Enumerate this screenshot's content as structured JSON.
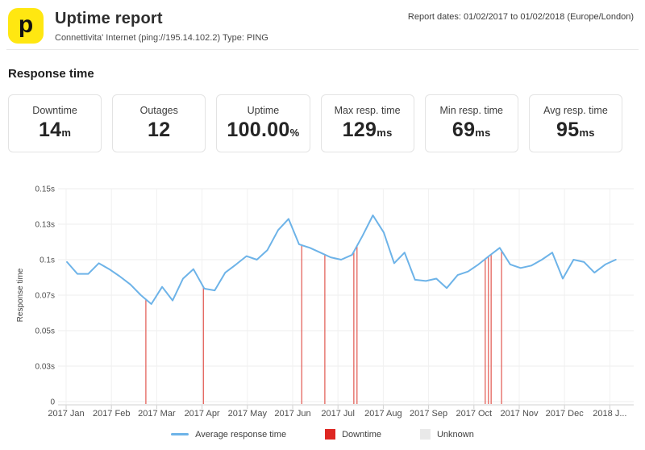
{
  "header": {
    "logo_letter": "p",
    "title": "Uptime report",
    "subtitle": "Connettivita' Internet (ping://195.14.102.2) Type: PING",
    "report_dates": "Report dates: 01/02/2017 to 01/02/2018 (Europe/London)"
  },
  "section": {
    "title": "Response time"
  },
  "stats": [
    {
      "label": "Downtime",
      "value": "14",
      "unit": "m"
    },
    {
      "label": "Outages",
      "value": "12",
      "unit": ""
    },
    {
      "label": "Uptime",
      "value": "100.00",
      "unit": "%"
    },
    {
      "label": "Max resp. time",
      "value": "129",
      "unit": "ms"
    },
    {
      "label": "Min resp. time",
      "value": "69",
      "unit": "ms"
    },
    {
      "label": "Avg resp. time",
      "value": "95",
      "unit": "ms"
    }
  ],
  "colors": {
    "brand_yellow": "#FFE711",
    "line_blue": "#6DB3E8",
    "downtime_red": "#DE2722",
    "downtime_line_red": "#E2574F",
    "unknown_gray": "#E9E9E9",
    "gridline": "#ECECEC",
    "vertical_gridline": "#F1F1F1",
    "axis_line": "#D9D9D9",
    "axis_text": "#4D4D4D"
  },
  "chart_data": {
    "type": "line",
    "title": "Response time",
    "ylabel": "Response time",
    "x_tick_labels": [
      "2017 Jan",
      "2017 Feb",
      "2017 Mar",
      "2017 Apr",
      "2017 May",
      "2017 Jun",
      "2017 Jul",
      "2017 Aug",
      "2017 Sep",
      "2017 Oct",
      "2017 Nov",
      "2017 Dec",
      "2018 J..."
    ],
    "y_ticks": {
      "values": [
        0,
        0.03,
        0.05,
        0.07,
        0.1,
        0.13,
        0.15
      ],
      "labels": [
        "0",
        "0.03s",
        "0.05s",
        "0.07s",
        "0.1s",
        "0.13s",
        "0.15s"
      ]
    },
    "series": [
      {
        "name": "Average response time",
        "unit": "seconds",
        "x_months": [
          0.02,
          0.25,
          0.49,
          0.72,
          0.95,
          1.18,
          1.42,
          1.65,
          1.88,
          2.12,
          2.35,
          2.58,
          2.81,
          3.05,
          3.28,
          3.51,
          3.75,
          3.98,
          4.21,
          4.44,
          4.68,
          4.91,
          5.14,
          5.38,
          5.61,
          5.84,
          6.07,
          6.31,
          6.54,
          6.77,
          7.01,
          7.24,
          7.47,
          7.7,
          7.94,
          8.17,
          8.4,
          8.64,
          8.87,
          9.1,
          9.33,
          9.57,
          9.8,
          10.03,
          10.27,
          10.5,
          10.73,
          10.96,
          11.2,
          11.43,
          11.66,
          11.9,
          12.13
        ],
        "values": [
          0.098,
          0.088,
          0.088,
          0.097,
          0.092,
          0.086,
          0.079,
          0.07,
          0.065,
          0.077,
          0.067,
          0.084,
          0.092,
          0.0755,
          0.074,
          0.089,
          0.096,
          0.103,
          0.1,
          0.108,
          0.125,
          0.133,
          0.113,
          0.11,
          0.106,
          0.102,
          0.1,
          0.104,
          0.12,
          0.135,
          0.123,
          0.097,
          0.106,
          0.083,
          0.082,
          0.084,
          0.076,
          0.087,
          0.09,
          0.096,
          0.103,
          0.11,
          0.096,
          0.093,
          0.095,
          0.1,
          0.106,
          0.084,
          0.1,
          0.098,
          0.089,
          0.096,
          0.1
        ]
      }
    ],
    "downtime_x_months": [
      1.76,
      3.03,
      5.2,
      5.71,
      6.35,
      6.42,
      9.25,
      9.32,
      9.38,
      9.61
    ],
    "legend": [
      {
        "label": "Average response time",
        "marker": "line",
        "color": "#6DB3E8"
      },
      {
        "label": "Downtime",
        "marker": "square",
        "color": "#DE2722"
      },
      {
        "label": "Unknown",
        "marker": "square",
        "color": "#E9E9E9"
      }
    ]
  }
}
